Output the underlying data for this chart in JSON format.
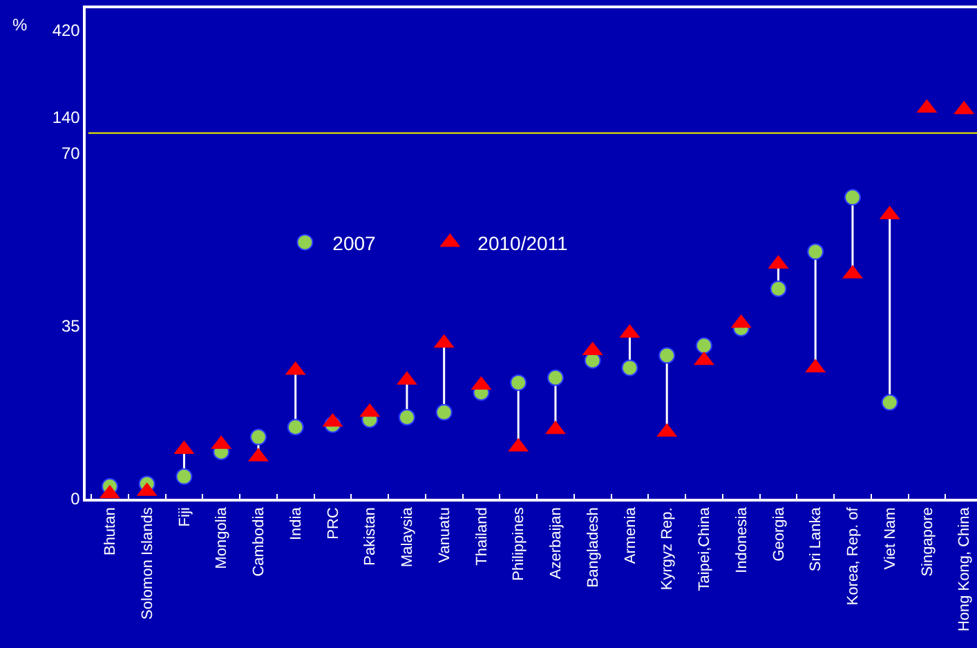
{
  "chart_data": [
    {
      "type": "scatter",
      "ylabel": "%",
      "series": [
        {
          "color": "#ff0000",
          "marker": "triangle",
          "values": [
            null,
            null,
            null,
            null,
            null,
            null,
            null,
            null,
            null,
            null,
            null,
            null,
            null,
            null,
            null,
            null,
            null,
            null,
            null,
            null,
            null,
            null,
            170,
            165
          ]
        }
      ],
      "ylim": [
        90,
        490
      ],
      "yticks": [
        140,
        420
      ],
      "tick_labels": "y"
    },
    {
      "type": "scatter",
      "categories": [
        "Bhutan",
        "Solomon Islands",
        "Fiji",
        "Mongolia",
        "Cambodia",
        "India",
        "PRC",
        "Pakistan",
        "Malaysia",
        "Vanuatu",
        "Thailand",
        "Philippines",
        "Azerbaijan",
        "Bangladesh",
        "Armenia",
        "Kyrgyz Rep.",
        "Taipei,China",
        "Indonesia",
        "Georgia",
        "Sri Lanka",
        "Korea, Rep. of",
        "Viet Nam",
        "Singapore",
        "Hong Kong, China"
      ],
      "series": [
        {
          "name": "2007",
          "color": "#92d050",
          "marker": "circle",
          "values": [
            2.5,
            3,
            4.5,
            9.5,
            12.5,
            14.5,
            15,
            16,
            16.5,
            17.5,
            21.5,
            23.5,
            24.5,
            28,
            26.5,
            29,
            31,
            34.5,
            42.5,
            50,
            61,
            19.5,
            null,
            null
          ]
        },
        {
          "name": "2010/2011",
          "color": "#ff0000",
          "marker": "triangle",
          "values": [
            1,
            1.5,
            10,
            11,
            8.5,
            26,
            15.5,
            17.5,
            24,
            31.5,
            23,
            10.5,
            14,
            30,
            33.5,
            13.5,
            28,
            35.5,
            47.5,
            26.5,
            45.5,
            57.5,
            null,
            null
          ]
        }
      ],
      "ylim": [
        0,
        74
      ],
      "yticks": [
        0,
        35,
        70
      ],
      "legend": "top left"
    }
  ]
}
